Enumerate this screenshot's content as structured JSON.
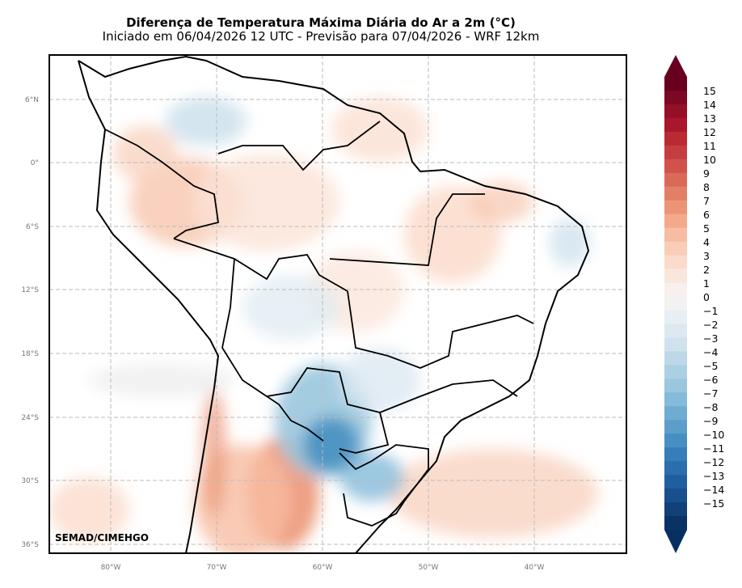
{
  "header": {
    "title": "Diferença de Temperatura Máxima Diária do Ar a 2m (°C)",
    "subtitle": "Iniciado em 06/04/2026 12 UTC - Previsão para 07/04/2026 - WRF 12km"
  },
  "map": {
    "lat_ticks": [
      "6°N",
      "0°",
      "6°S",
      "12°S",
      "18°S",
      "24°S",
      "30°S",
      "36°S"
    ],
    "lon_ticks": [
      "80°W",
      "70°W",
      "60°W",
      "50°W",
      "40°W"
    ],
    "credit": "SEMAD/CIMEHGO"
  },
  "colorbar": {
    "labels": [
      "15",
      "14",
      "13",
      "12",
      "11",
      "10",
      "9",
      "8",
      "7",
      "6",
      "5",
      "4",
      "3",
      "2",
      "1",
      "0",
      "−1",
      "−2",
      "−3",
      "−4",
      "−5",
      "−6",
      "−7",
      "−8",
      "−9",
      "−10",
      "−11",
      "−12",
      "−13",
      "−14",
      "−15"
    ],
    "colors": [
      "#67001f",
      "#7d0823",
      "#940f27",
      "#aa162b",
      "#b92a33",
      "#c53e3f",
      "#d0524b",
      "#da6a58",
      "#e37f66",
      "#ec9576",
      "#f3aa8a",
      "#f7bda2",
      "#f9cdb8",
      "#fbdccc",
      "#f9e7de",
      "#f7f0ec",
      "#f2f2f3",
      "#e8eff4",
      "#dce9f1",
      "#cfe2ed",
      "#bed8e8",
      "#acd0e3",
      "#9ac6de",
      "#84bada",
      "#6eacd2",
      "#5a9ec9",
      "#4590c1",
      "#367eb8",
      "#2b6eae",
      "#1f5fa0",
      "#19508c",
      "#124177",
      "#0b3264"
    ],
    "extend_low": "#053061",
    "extend_high": "#67001f"
  }
}
